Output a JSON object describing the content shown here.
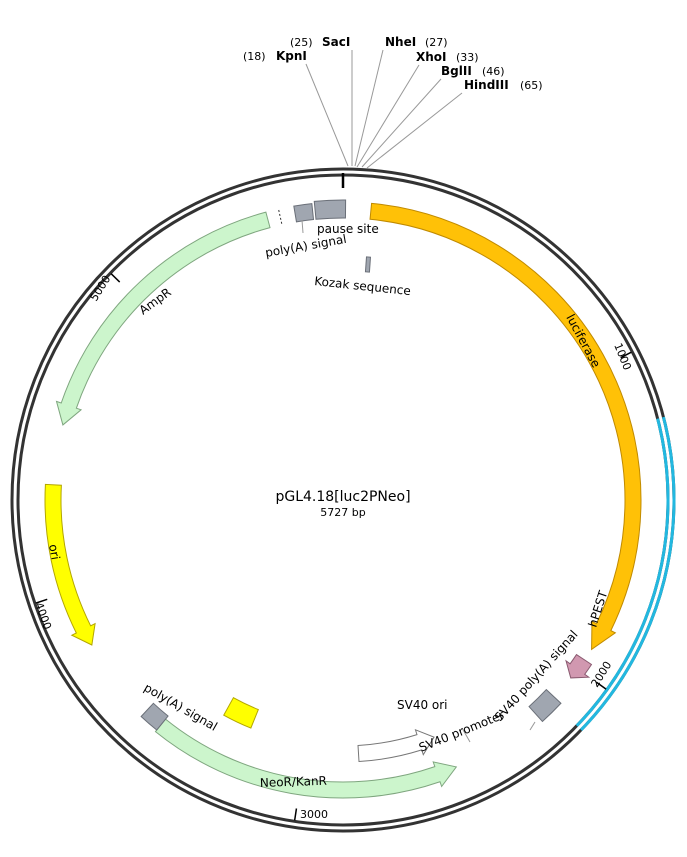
{
  "title": "pGL4.18[luc2PNeo]",
  "length_label": "5727 bp",
  "total_bp": 5727,
  "colors": {
    "backbone": "#333333",
    "orange": "#FFC107",
    "orange_stroke": "#C08A00",
    "green": "#CCF5CC",
    "green_stroke": "#7FA67F",
    "yellow": "#FFFF00",
    "yellow_stroke": "#B3A600",
    "gray": "#A0A6B0",
    "pink": "#D198B0",
    "white": "#FFFFFF",
    "cyan": "#22B8E0"
  },
  "ticks": [
    {
      "label": "1000"
    },
    {
      "label": "2000"
    },
    {
      "label": "3000"
    },
    {
      "label": "4000"
    },
    {
      "label": "5000"
    }
  ],
  "sites": [
    {
      "name": "KpnI",
      "pos": "(18)"
    },
    {
      "name": "SacI",
      "pos": "(25)"
    },
    {
      "name": "NheI",
      "pos": "(27)"
    },
    {
      "name": "XhoI",
      "pos": "(33)"
    },
    {
      "name": "BglII",
      "pos": "(46)"
    },
    {
      "name": "HindIII",
      "pos": "(65)"
    }
  ],
  "features": {
    "luciferase": "luciferase",
    "hpest": "hPEST",
    "sv40_polya": "SV40 poly(A) signal",
    "sv40_promoter": "SV40 promoter",
    "sv40_ori": "SV40 ori",
    "neor": "NeoR/KanR",
    "polya_neo": "poly(A) signal",
    "ori": "ori",
    "ampr": "AmpR",
    "polya_top": "poly(A) signal",
    "pause_site": "pause site",
    "kozak": "Kozak sequence"
  }
}
